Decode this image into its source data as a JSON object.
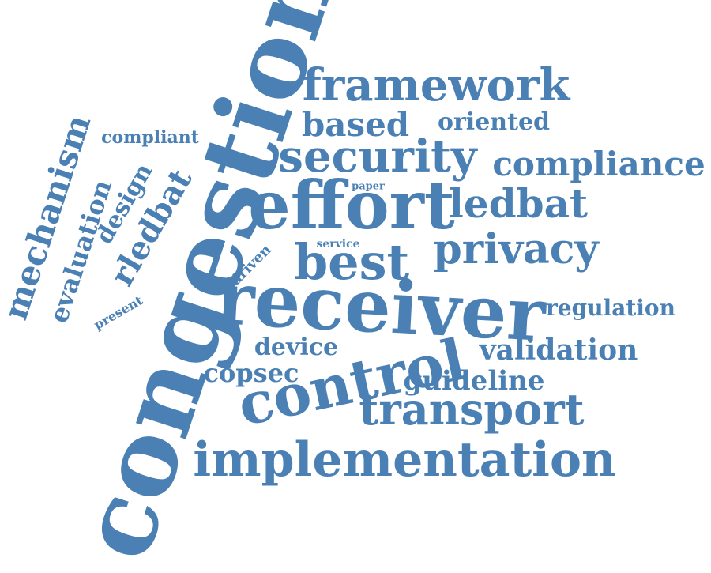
{
  "cloud": {
    "color": "#4a80b4",
    "words": [
      {
        "text": "congestion"
      },
      {
        "text": "receiver"
      },
      {
        "text": "effort"
      },
      {
        "text": "control"
      },
      {
        "text": "best"
      },
      {
        "text": "implementation"
      },
      {
        "text": "transport"
      },
      {
        "text": "security"
      },
      {
        "text": "framework"
      },
      {
        "text": "privacy"
      },
      {
        "text": "ledbat"
      },
      {
        "text": "based"
      },
      {
        "text": "compliance"
      },
      {
        "text": "validation"
      },
      {
        "text": "guideline"
      },
      {
        "text": "copsec"
      },
      {
        "text": "device"
      },
      {
        "text": "oriented"
      },
      {
        "text": "regulation"
      },
      {
        "text": "mechanism"
      },
      {
        "text": "evaluation"
      },
      {
        "text": "rledbat"
      },
      {
        "text": "design"
      },
      {
        "text": "compliant"
      },
      {
        "text": "driven"
      },
      {
        "text": "present"
      },
      {
        "text": "service"
      },
      {
        "text": "paper"
      }
    ]
  }
}
